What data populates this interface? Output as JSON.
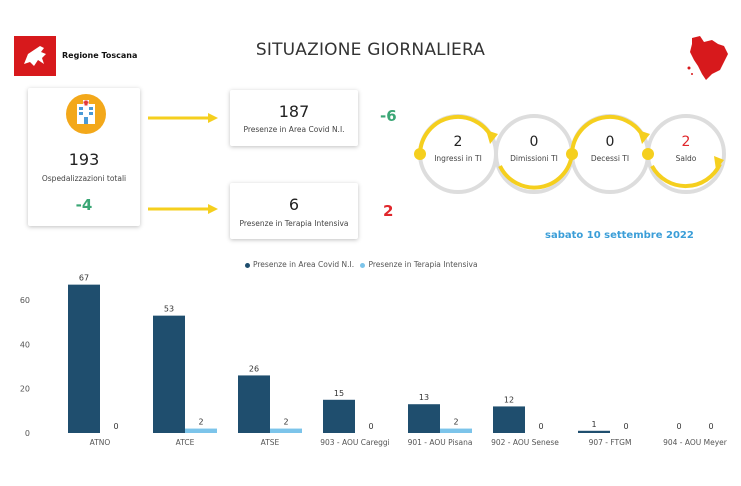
{
  "header": {
    "logo_text": "Regione Toscana",
    "title": "SITUAZIONE GIORNALIERA"
  },
  "summary": {
    "total": "193",
    "total_label": "Ospedalizzazioni totali",
    "total_delta": "-4",
    "area_covid": "187",
    "area_covid_label": "Presenze in Area Covid N.I.",
    "area_covid_delta": "-6",
    "terapia": "6",
    "terapia_label": "Presenze in Terapia Intensiva",
    "terapia_delta": "2"
  },
  "flow": [
    {
      "value": "2",
      "label": "Ingressi in TI"
    },
    {
      "value": "0",
      "label": "Dimissioni TI"
    },
    {
      "value": "0",
      "label": "Decessi TI"
    },
    {
      "value": "2",
      "label": "Saldo"
    }
  ],
  "date": "sabato 10 settembre 2022",
  "colors": {
    "dark_series": "#1f4e6e",
    "light_series": "#7cc4ea",
    "arrow": "#f5cf1e",
    "green": "#3aa675",
    "red": "#e0262b",
    "date": "#3b9ed8"
  },
  "chart_data": {
    "type": "bar",
    "categories": [
      "ATNO",
      "ATCE",
      "ATSE",
      "903 - AOU Careggi",
      "901 - AOU Pisana",
      "902 - AOU Senese",
      "907 - FTGM",
      "904 - AOU Meyer"
    ],
    "series": [
      {
        "name": "Presenze in Area Covid N.I.",
        "values": [
          67,
          53,
          26,
          15,
          13,
          12,
          1,
          0
        ]
      },
      {
        "name": "Presenze in Terapia Intensiva",
        "values": [
          0,
          2,
          2,
          0,
          2,
          0,
          0,
          0
        ]
      }
    ],
    "yticks": [
      0,
      20,
      40,
      60
    ],
    "ylim": [
      0,
      70
    ],
    "legend_position": "top-center",
    "grid": false
  }
}
